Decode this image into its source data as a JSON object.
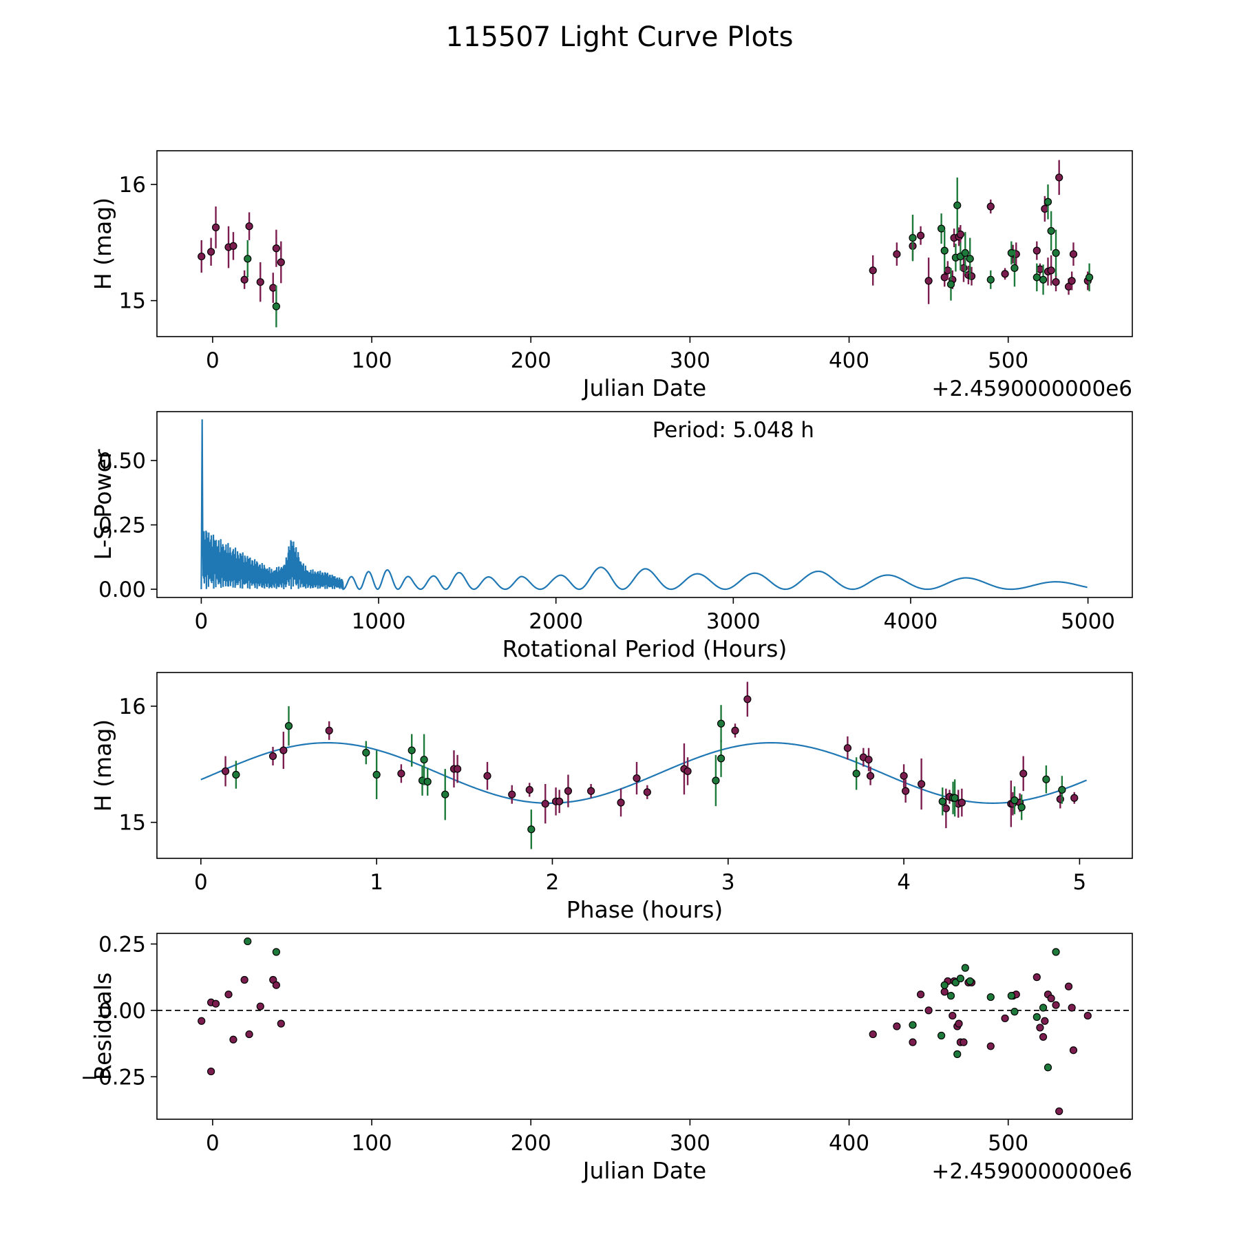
{
  "title": "115507 Light Curve Plots",
  "colors": {
    "filter_a": "#7b1d4e",
    "filter_b": "#1d7a3a",
    "curve": "#1f77b4",
    "edge": "#000000"
  },
  "chart_data": [
    {
      "type": "scatter",
      "name": "raw-lightcurve",
      "xlabel": "Julian Date",
      "ylabel": "H (mag)",
      "x_offset_label": "+2.4590000000e6",
      "xlim": [
        -35,
        578
      ],
      "ylim": [
        14.69,
        16.29
      ],
      "xticks": [
        0,
        100,
        200,
        300,
        400,
        500
      ],
      "xtick_labels": [
        "0",
        "100",
        "200",
        "300",
        "400",
        "500"
      ],
      "yticks": [
        15,
        16
      ],
      "ytick_labels": [
        "15",
        "16"
      ],
      "y_inverted": false,
      "series": [
        {
          "name": "filter-a",
          "color": "#7b1d4e",
          "points": [
            [
              -7,
              15.38,
              0.14
            ],
            [
              -1,
              15.42,
              0.12
            ],
            [
              2,
              15.63,
              0.18
            ],
            [
              10,
              15.46,
              0.18
            ],
            [
              13,
              15.47,
              0.12
            ],
            [
              20,
              15.18,
              0.08
            ],
            [
              23,
              15.64,
              0.12
            ],
            [
              30,
              15.16,
              0.17
            ],
            [
              38,
              15.11,
              0.13
            ],
            [
              40,
              15.45,
              0.16
            ],
            [
              43,
              15.33,
              0.18
            ],
            [
              415,
              15.26,
              0.13
            ],
            [
              430,
              15.4,
              0.1
            ],
            [
              440,
              15.47,
              0.12
            ],
            [
              445,
              15.56,
              0.08
            ],
            [
              450,
              15.17,
              0.2
            ],
            [
              460,
              15.2,
              0.08
            ],
            [
              462,
              15.26,
              0.08
            ],
            [
              465,
              15.18,
              0.08
            ],
            [
              466,
              15.54,
              0.08
            ],
            [
              469,
              15.55,
              0.08
            ],
            [
              470,
              15.57,
              0.08
            ],
            [
              472,
              15.28,
              0.12
            ],
            [
              475,
              15.22,
              0.08
            ],
            [
              477,
              15.21,
              0.08
            ],
            [
              489,
              15.81,
              0.06
            ],
            [
              498,
              15.23,
              0.05
            ],
            [
              503,
              15.4,
              0.08
            ],
            [
              505,
              15.4,
              0.1
            ],
            [
              518,
              15.43,
              0.08
            ],
            [
              520,
              15.27,
              0.05
            ],
            [
              523,
              15.79,
              0.11
            ],
            [
              525,
              15.25,
              0.12
            ],
            [
              527,
              15.26,
              0.13
            ],
            [
              530,
              15.16,
              0.08
            ],
            [
              532,
              16.06,
              0.15
            ],
            [
              538,
              15.12,
              0.07
            ],
            [
              540,
              15.17,
              0.08
            ],
            [
              541,
              15.4,
              0.1
            ],
            [
              550,
              15.17,
              0.08
            ]
          ]
        },
        {
          "name": "filter-b",
          "color": "#1d7a3a",
          "points": [
            [
              22,
              15.36,
              0.16
            ],
            [
              40,
              14.95,
              0.18
            ],
            [
              440,
              15.54,
              0.2
            ],
            [
              458,
              15.62,
              0.13
            ],
            [
              460,
              15.43,
              0.18
            ],
            [
              464,
              15.14,
              0.14
            ],
            [
              467,
              15.37,
              0.12
            ],
            [
              468,
              15.82,
              0.24
            ],
            [
              470,
              15.38,
              0.12
            ],
            [
              473,
              15.41,
              0.18
            ],
            [
              476,
              15.36,
              0.18
            ],
            [
              489,
              15.18,
              0.08
            ],
            [
              502,
              15.41,
              0.1
            ],
            [
              504,
              15.28,
              0.16
            ],
            [
              518,
              15.2,
              0.12
            ],
            [
              522,
              15.18,
              0.13
            ],
            [
              525,
              15.85,
              0.15
            ],
            [
              527,
              15.6,
              0.17
            ],
            [
              530,
              15.41,
              0.2
            ],
            [
              551,
              15.2,
              0.12
            ]
          ]
        }
      ]
    },
    {
      "type": "line",
      "name": "periodogram",
      "xlabel": "Rotational Period (Hours)",
      "ylabel": "L-S Power",
      "annotation": "Period: 5.048 h",
      "xlim": [
        -250,
        5250
      ],
      "ylim": [
        -0.032,
        0.69
      ],
      "xticks": [
        0,
        1000,
        2000,
        3000,
        4000,
        5000
      ],
      "xtick_labels": [
        "0",
        "1000",
        "2000",
        "3000",
        "4000",
        "5000"
      ],
      "yticks": [
        0.0,
        0.25,
        0.5
      ],
      "ytick_labels": [
        "0.00",
        "0.25",
        "0.50"
      ],
      "peak": {
        "x": 5,
        "y": 0.66
      },
      "oscillation_envelope": {
        "x": [
          10,
          100,
          200,
          300,
          400,
          470,
          500,
          520,
          560,
          600,
          700,
          800,
          900,
          1000,
          1100,
          1200,
          1300,
          1400,
          1500,
          1600,
          1700,
          1800,
          1900,
          2000,
          2100,
          2300,
          2500,
          2700,
          3000,
          3500,
          4000,
          4300,
          4600,
          5000
        ],
        "y": [
          0.25,
          0.2,
          0.16,
          0.12,
          0.08,
          0.1,
          0.2,
          0.2,
          0.12,
          0.08,
          0.07,
          0.04,
          0.06,
          0.08,
          0.07,
          0.04,
          0.05,
          0.07,
          0.06,
          0.05,
          0.04,
          0.05,
          0.04,
          0.05,
          0.07,
          0.09,
          0.08,
          0.06,
          0.06,
          0.07,
          0.05,
          0.045,
          0.03,
          0.028
        ]
      }
    },
    {
      "type": "scatter",
      "name": "phased-lightcurve",
      "xlabel": "Phase (hours)",
      "ylabel": "H (mag)",
      "xlim": [
        -0.25,
        5.3
      ],
      "ylim": [
        14.69,
        16.29
      ],
      "xticks": [
        0,
        1,
        2,
        3,
        4,
        5
      ],
      "xtick_labels": [
        "0",
        "1",
        "2",
        "3",
        "4",
        "5"
      ],
      "yticks": [
        15,
        16
      ],
      "ytick_labels": [
        "15",
        "16"
      ],
      "fit": {
        "period": 5.048,
        "mean": 15.425,
        "amplitude": 0.26,
        "phase_peak": 0.72,
        "x_max": 5.048
      },
      "series": [
        {
          "name": "filter-a",
          "color": "#7b1d4e",
          "points": [
            [
              0.14,
              15.44,
              0.13
            ],
            [
              0.41,
              15.57,
              0.08
            ],
            [
              0.47,
              15.62,
              0.16
            ],
            [
              0.73,
              15.79,
              0.08
            ],
            [
              1.14,
              15.42,
              0.08
            ],
            [
              1.44,
              15.46,
              0.16
            ],
            [
              1.46,
              15.46,
              0.12
            ],
            [
              1.63,
              15.4,
              0.12
            ],
            [
              1.77,
              15.24,
              0.08
            ],
            [
              1.87,
              15.28,
              0.06
            ],
            [
              1.96,
              15.16,
              0.17
            ],
            [
              2.02,
              15.18,
              0.12
            ],
            [
              2.04,
              15.18,
              0.1
            ],
            [
              2.09,
              15.27,
              0.14
            ],
            [
              2.22,
              15.27,
              0.06
            ],
            [
              2.39,
              15.17,
              0.12
            ],
            [
              2.48,
              15.38,
              0.14
            ],
            [
              2.54,
              15.26,
              0.06
            ],
            [
              2.75,
              15.46,
              0.22
            ],
            [
              2.77,
              15.44,
              0.12
            ],
            [
              3.04,
              15.79,
              0.06
            ],
            [
              3.11,
              16.06,
              0.15
            ],
            [
              3.68,
              15.64,
              0.1
            ],
            [
              3.77,
              15.56,
              0.08
            ],
            [
              3.8,
              15.54,
              0.1
            ],
            [
              3.81,
              15.4,
              0.08
            ],
            [
              4.0,
              15.4,
              0.1
            ],
            [
              4.01,
              15.27,
              0.1
            ],
            [
              4.1,
              15.33,
              0.22
            ],
            [
              4.24,
              15.12,
              0.17
            ],
            [
              4.26,
              15.22,
              0.06
            ],
            [
              4.31,
              15.16,
              0.12
            ],
            [
              4.33,
              15.17,
              0.12
            ],
            [
              4.61,
              15.16,
              0.2
            ],
            [
              4.62,
              15.16,
              0.1
            ],
            [
              4.66,
              15.17,
              0.08
            ],
            [
              4.68,
              15.42,
              0.15
            ],
            [
              4.89,
              15.2,
              0.08
            ],
            [
              4.97,
              15.21,
              0.05
            ]
          ]
        },
        {
          "name": "filter-b",
          "color": "#1d7a3a",
          "points": [
            [
              0.2,
              15.41,
              0.12
            ],
            [
              0.5,
              15.83,
              0.17
            ],
            [
              0.94,
              15.6,
              0.1
            ],
            [
              1.0,
              15.41,
              0.21
            ],
            [
              1.2,
              15.62,
              0.14
            ],
            [
              1.26,
              15.36,
              0.13
            ],
            [
              1.27,
              15.54,
              0.22
            ],
            [
              1.29,
              15.35,
              0.12
            ],
            [
              1.39,
              15.24,
              0.22
            ],
            [
              1.88,
              14.94,
              0.17
            ],
            [
              2.93,
              15.36,
              0.22
            ],
            [
              2.96,
              15.55,
              0.16
            ],
            [
              2.96,
              15.85,
              0.16
            ],
            [
              3.73,
              15.42,
              0.14
            ],
            [
              4.22,
              15.18,
              0.12
            ],
            [
              4.28,
              15.21,
              0.14
            ],
            [
              4.29,
              15.21,
              0.16
            ],
            [
              4.63,
              15.19,
              0.12
            ],
            [
              4.67,
              15.13,
              0.11
            ],
            [
              4.81,
              15.37,
              0.12
            ],
            [
              4.9,
              15.28,
              0.12
            ]
          ]
        }
      ]
    },
    {
      "type": "scatter",
      "name": "residuals",
      "xlabel": "Julian Date",
      "ylabel": "Residuals",
      "x_offset_label": "+2.4590000000e6",
      "xlim": [
        -35,
        578
      ],
      "ylim": [
        -0.41,
        0.29
      ],
      "xticks": [
        0,
        100,
        200,
        300,
        400,
        500
      ],
      "xtick_labels": [
        "0",
        "100",
        "200",
        "300",
        "400",
        "500"
      ],
      "yticks": [
        -0.25,
        0.0,
        0.25
      ],
      "ytick_labels": [
        "−0.25",
        "0.00",
        "0.25"
      ],
      "reference_line": 0.0,
      "series": [
        {
          "name": "filter-a",
          "color": "#7b1d4e",
          "points": [
            [
              -7,
              -0.04
            ],
            [
              -1,
              0.03
            ],
            [
              -1,
              -0.23
            ],
            [
              2,
              0.025
            ],
            [
              10,
              0.06
            ],
            [
              13,
              -0.11
            ],
            [
              20,
              0.115
            ],
            [
              23,
              -0.09
            ],
            [
              30,
              0.015
            ],
            [
              38,
              0.115
            ],
            [
              40,
              0.095
            ],
            [
              43,
              -0.05
            ],
            [
              415,
              -0.09
            ],
            [
              430,
              -0.06
            ],
            [
              440,
              -0.12
            ],
            [
              445,
              0.06
            ],
            [
              450,
              0.0
            ],
            [
              460,
              0.07
            ],
            [
              462,
              0.11
            ],
            [
              465,
              -0.02
            ],
            [
              466,
              0.11
            ],
            [
              468,
              -0.06
            ],
            [
              469,
              -0.05
            ],
            [
              470,
              -0.12
            ],
            [
              472,
              -0.12
            ],
            [
              475,
              0.105
            ],
            [
              477,
              0.105
            ],
            [
              489,
              -0.135
            ],
            [
              498,
              -0.03
            ],
            [
              503,
              0.055
            ],
            [
              505,
              0.06
            ],
            [
              518,
              0.125
            ],
            [
              520,
              -0.065
            ],
            [
              522,
              -0.1
            ],
            [
              523,
              -0.04
            ],
            [
              525,
              0.06
            ],
            [
              527,
              0.045
            ],
            [
              530,
              0.02
            ],
            [
              532,
              -0.38
            ],
            [
              538,
              0.09
            ],
            [
              540,
              0.01
            ],
            [
              541,
              -0.15
            ],
            [
              550,
              -0.02
            ]
          ]
        },
        {
          "name": "filter-b",
          "color": "#1d7a3a",
          "points": [
            [
              22,
              0.26
            ],
            [
              40,
              0.22
            ],
            [
              440,
              -0.055
            ],
            [
              458,
              -0.095
            ],
            [
              460,
              0.095
            ],
            [
              464,
              0.055
            ],
            [
              467,
              0.105
            ],
            [
              468,
              -0.165
            ],
            [
              470,
              0.12
            ],
            [
              473,
              0.16
            ],
            [
              476,
              0.11
            ],
            [
              489,
              0.05
            ],
            [
              502,
              0.055
            ],
            [
              504,
              -0.005
            ],
            [
              518,
              -0.025
            ],
            [
              522,
              0.01
            ],
            [
              525,
              -0.215
            ],
            [
              530,
              0.22
            ]
          ]
        }
      ]
    }
  ]
}
